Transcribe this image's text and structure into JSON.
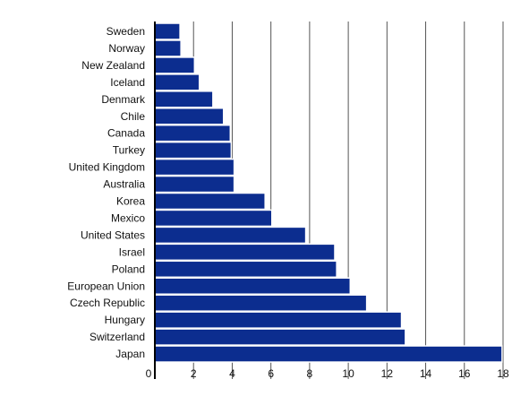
{
  "chart_data": {
    "type": "bar",
    "orientation": "horizontal",
    "title": "",
    "xlabel": "",
    "ylabel": "",
    "categories": [
      "Sweden",
      "Norway",
      "New Zealand",
      "Iceland",
      "Denmark",
      "Chile",
      "Canada",
      "Turkey",
      "United Kingdom",
      "Australia",
      "Korea",
      "Mexico",
      "United States",
      "Israel",
      "Poland",
      "European Union",
      "Czech Republic",
      "Hungary",
      "Switzerland",
      "Japan"
    ],
    "values": [
      1.3,
      1.35,
      2.05,
      2.3,
      3.0,
      3.55,
      3.9,
      3.95,
      4.1,
      4.1,
      5.7,
      6.05,
      7.8,
      9.3,
      9.4,
      10.1,
      10.95,
      12.75,
      12.95,
      17.95
    ],
    "xlim": [
      0,
      18
    ],
    "xticks": [
      0,
      2,
      4,
      6,
      8,
      10,
      12,
      14,
      16,
      18
    ],
    "grid": "vertical",
    "bar_color": "#0c2d8f"
  }
}
